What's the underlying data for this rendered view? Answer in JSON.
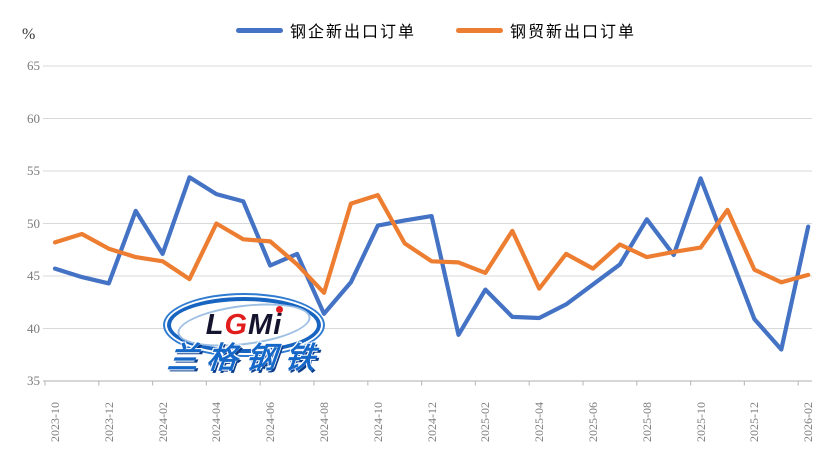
{
  "unit": "%",
  "legend": [
    {
      "label": "钢企新出口订单",
      "color": "#4472C4"
    },
    {
      "label": "钢贸新出口订单",
      "color": "#ED7D31"
    }
  ],
  "chart_data": {
    "type": "line",
    "x": [
      "2023-10",
      "2023-11",
      "2023-12",
      "2024-01",
      "2024-02",
      "2024-03",
      "2024-04",
      "2024-05",
      "2024-06",
      "2024-07",
      "2024-08",
      "2024-09",
      "2024-10",
      "2024-11",
      "2024-12",
      "2025-01",
      "2025-02",
      "2025-03",
      "2025-04",
      "2025-05",
      "2025-06",
      "2025-07",
      "2025-08",
      "2025-09",
      "2025-10",
      "2025-11",
      "2025-12",
      "2026-01",
      "2026-02"
    ],
    "series": [
      {
        "name": "钢企新出口订单",
        "color": "#4472C4",
        "values": [
          45.7,
          44.9,
          44.3,
          51.2,
          47.1,
          54.4,
          52.8,
          52.1,
          46.0,
          47.1,
          41.4,
          44.4,
          49.8,
          50.3,
          50.7,
          39.4,
          43.7,
          41.1,
          41.0,
          42.3,
          44.2,
          46.1,
          50.4,
          47.0,
          54.3,
          47.6,
          40.9,
          38.0,
          49.7
        ]
      },
      {
        "name": "钢贸新出口订单",
        "color": "#ED7D31",
        "values": [
          48.2,
          49.0,
          47.6,
          46.8,
          46.4,
          44.7,
          50.0,
          48.5,
          48.3,
          46.1,
          43.4,
          51.9,
          52.7,
          48.1,
          46.4,
          46.3,
          45.3,
          49.3,
          43.8,
          47.1,
          45.7,
          48.0,
          46.8,
          47.3,
          47.7,
          51.3,
          45.6,
          44.4,
          45.1
        ]
      }
    ],
    "title": "",
    "xlabel": "",
    "ylabel": "%",
    "ylim": [
      35,
      65
    ],
    "yticks": [
      35,
      40,
      45,
      50,
      55,
      60,
      65
    ],
    "xtick_labels": [
      "2023-10",
      "2023-12",
      "2024-02",
      "2024-04",
      "2024-06",
      "2024-08",
      "2024-10",
      "2024-12",
      "2025-02",
      "2025-04",
      "2025-06",
      "2025-08",
      "2025-10",
      "2025-12",
      "2026-02"
    ],
    "grid": true,
    "legend_position": "top-center",
    "gridline_color": "#D9D9D9",
    "axis_line_color": "#BFBFBF",
    "tick_label_color": "#7B7B7B"
  },
  "watermark": {
    "letters": [
      "L",
      "G",
      "M",
      "i"
    ],
    "cn_label": "兰格钢铁"
  }
}
